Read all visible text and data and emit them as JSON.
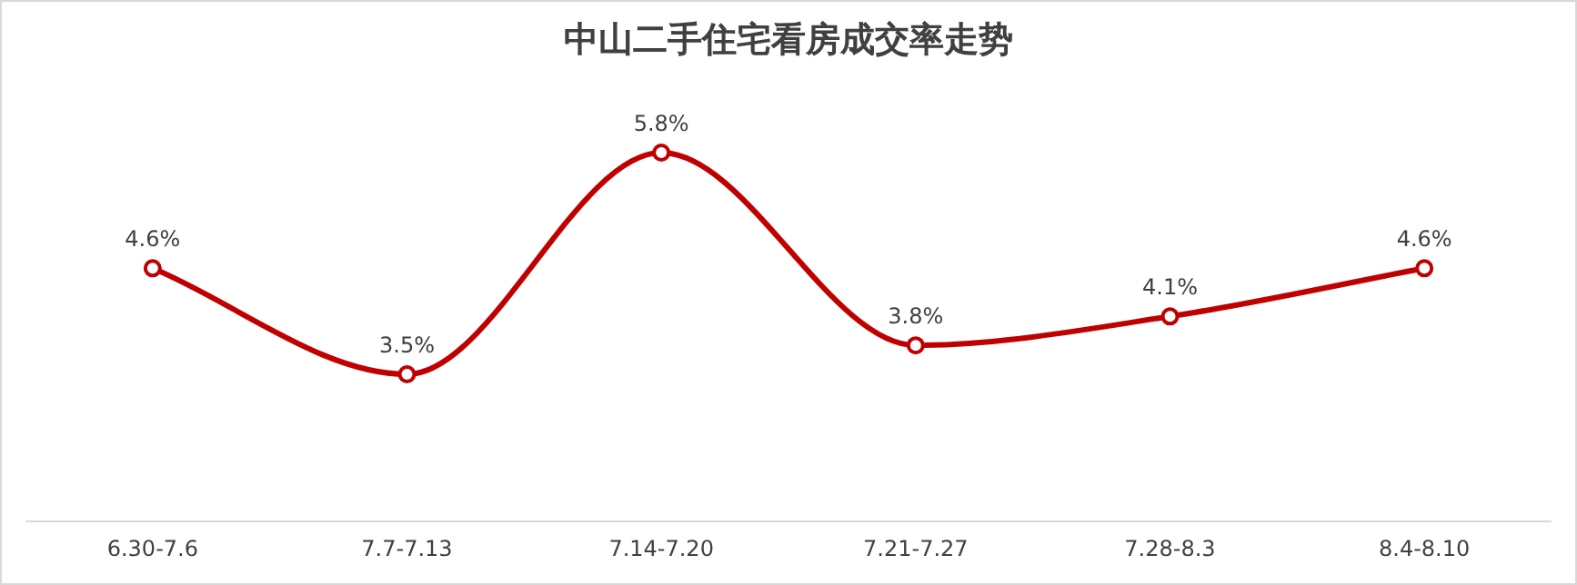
{
  "chart_data": {
    "type": "line",
    "title": "中山二手住宅看房成交率走势",
    "categories": [
      "6.30-7.6",
      "7.7-7.13",
      "7.14-7.20",
      "7.21-7.27",
      "7.28-8.3",
      "8.4-8.10"
    ],
    "values": [
      4.6,
      3.5,
      5.8,
      3.8,
      4.1,
      4.6
    ],
    "value_labels": [
      "4.6%",
      "3.5%",
      "5.8%",
      "3.8%",
      "4.1%",
      "4.6%"
    ],
    "color": "#c00000",
    "marker": "circle",
    "line_style": "solid"
  }
}
